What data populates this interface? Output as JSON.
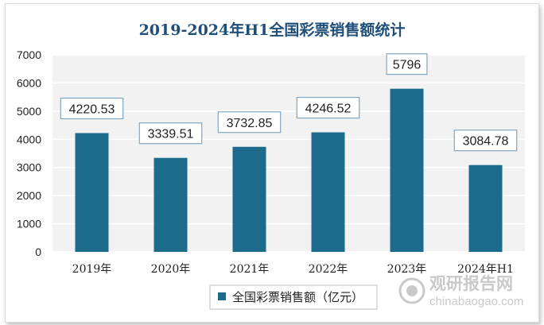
{
  "colors": {
    "bar": "#1c6b8c",
    "plot_bg": "#f2f2f2",
    "grid": "#ffffff",
    "title": "#1f4e79",
    "label_border": "#7fa7c0"
  },
  "watermark": {
    "name": "观研报告网",
    "url": "chinabaogao.com",
    "icon": "logo-icon"
  },
  "chart_data": {
    "type": "bar",
    "title": "2019-2024年H1全国彩票销售额统计",
    "categories": [
      "2019年",
      "2020年",
      "2021年",
      "2022年",
      "2023年",
      "2024年H1"
    ],
    "series": [
      {
        "name": "全国彩票销售额（亿元）",
        "values": [
          4220.53,
          3339.51,
          3732.85,
          4246.52,
          5796,
          3084.78
        ],
        "labels": [
          "4220.53",
          "3339.51",
          "3732.85",
          "4246.52",
          "5796",
          "3084.78"
        ]
      }
    ],
    "yticks": [
      "0",
      "1000",
      "2000",
      "3000",
      "4000",
      "5000",
      "6000",
      "7000"
    ],
    "ylim": [
      0,
      7000
    ],
    "xlabel": "",
    "ylabel": "",
    "grid": true,
    "legend_position": "bottom"
  }
}
